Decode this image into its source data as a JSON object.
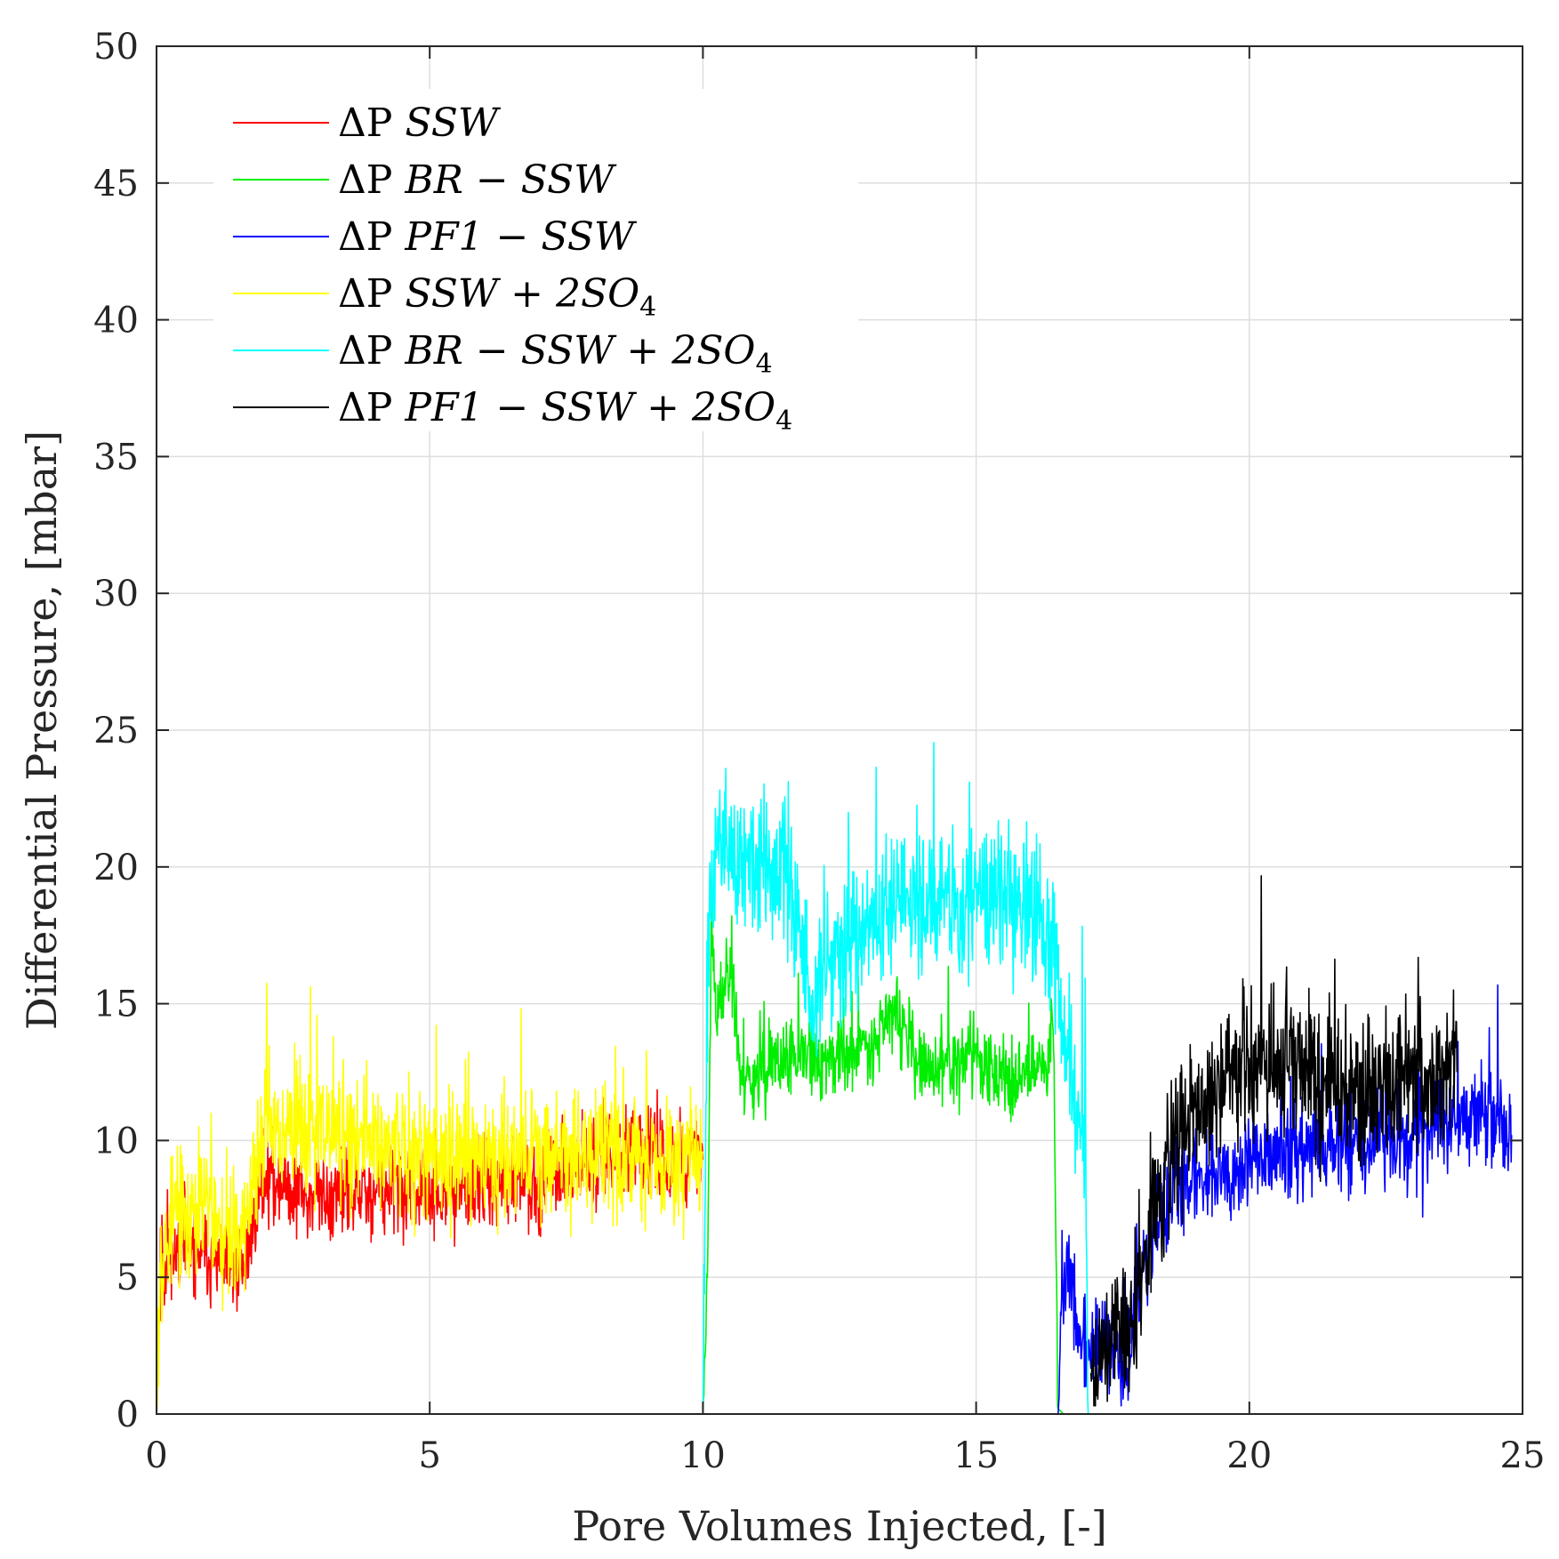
{
  "chart_data": {
    "type": "line",
    "title": "",
    "xlabel": "Pore Volumes Injected, [-]",
    "ylabel": "Differential Pressure, [mbar]",
    "xlim": [
      0,
      25
    ],
    "ylim": [
      0,
      50
    ],
    "xticks": [
      0,
      5,
      10,
      15,
      20,
      25
    ],
    "yticks": [
      0,
      5,
      10,
      15,
      20,
      25,
      30,
      35,
      40,
      45,
      50
    ],
    "grid": true,
    "legend_position": "top-left",
    "series": [
      {
        "name": "ΔP SSW",
        "legend_plain": "ΔP ",
        "legend_italic": "SSW",
        "legend_sub": "",
        "color": "#ff0000",
        "x_range": [
          0.0,
          10.0
        ],
        "trend": [
          [
            0.0,
            0.0
          ],
          [
            0.08,
            5.8
          ],
          [
            0.5,
            6.0
          ],
          [
            1.0,
            5.6
          ],
          [
            1.6,
            5.0
          ],
          [
            1.75,
            7.0
          ],
          [
            1.95,
            8.6
          ],
          [
            3.0,
            7.9
          ],
          [
            5.0,
            8.1
          ],
          [
            7.0,
            8.6
          ],
          [
            8.5,
            9.6
          ],
          [
            10.0,
            9.3
          ]
        ],
        "noise": 1.0,
        "seed": 11
      },
      {
        "name": "ΔP BR − SSW",
        "legend_plain": "ΔP ",
        "legend_italic": "BR − SSW",
        "legend_sub": "",
        "color": "#00ee00",
        "x_range": [
          10.0,
          16.6
        ],
        "trend": [
          [
            10.0,
            0.0
          ],
          [
            10.08,
            5.0
          ],
          [
            10.15,
            17.5
          ],
          [
            10.25,
            14.5
          ],
          [
            10.5,
            16.8
          ],
          [
            10.7,
            12.2
          ],
          [
            11.5,
            12.8
          ],
          [
            12.3,
            13.0
          ],
          [
            13.0,
            13.5
          ],
          [
            13.5,
            14.8
          ],
          [
            14.0,
            12.5
          ],
          [
            15.0,
            13.0
          ],
          [
            15.5,
            12.2
          ],
          [
            16.3,
            12.8
          ],
          [
            16.4,
            15.0
          ],
          [
            16.5,
            0.2
          ],
          [
            16.6,
            0.0
          ]
        ],
        "noise": 0.9,
        "seed": 23
      },
      {
        "name": "ΔP PF1 − SSW",
        "legend_plain": "ΔP ",
        "legend_italic": "PF1 − SSW",
        "legend_sub": "",
        "color": "#0000ff",
        "x_range": [
          16.5,
          24.8
        ],
        "trend": [
          [
            16.5,
            0.0
          ],
          [
            16.55,
            3.6
          ],
          [
            16.7,
            5.5
          ],
          [
            16.9,
            2.5
          ],
          [
            17.2,
            2.4
          ],
          [
            17.8,
            2.2
          ],
          [
            18.2,
            6.5
          ],
          [
            18.8,
            8.5
          ],
          [
            19.5,
            9.0
          ],
          [
            20.5,
            9.5
          ],
          [
            21.5,
            10.0
          ],
          [
            22.5,
            10.0
          ],
          [
            23.5,
            10.5
          ],
          [
            24.3,
            11.0
          ],
          [
            24.8,
            10.2
          ]
        ],
        "noise": 1.1,
        "seed": 37
      },
      {
        "name": "ΔP SSW + 2SO4",
        "legend_plain": "ΔP ",
        "legend_italic": "SSW + 2SO",
        "legend_sub": "4",
        "color": "#ffff00",
        "x_range": [
          0.0,
          10.0
        ],
        "trend": [
          [
            0.0,
            0.0
          ],
          [
            0.06,
            5.0
          ],
          [
            0.3,
            7.2
          ],
          [
            0.8,
            7.5
          ],
          [
            1.5,
            6.5
          ],
          [
            1.7,
            7.5
          ],
          [
            2.0,
            10.5
          ],
          [
            3.0,
            10.3
          ],
          [
            5.0,
            9.6
          ],
          [
            7.0,
            9.6
          ],
          [
            8.5,
            9.4
          ],
          [
            10.0,
            9.6
          ]
        ],
        "noise": 1.5,
        "seed": 53
      },
      {
        "name": "ΔP BR − SSW + 2SO4",
        "legend_plain": "ΔP ",
        "legend_italic": "BR − SSW + 2SO",
        "legend_sub": "4",
        "color": "#00ffff",
        "x_range": [
          10.0,
          17.05
        ],
        "trend": [
          [
            10.0,
            0.0
          ],
          [
            10.1,
            18.0
          ],
          [
            10.2,
            20.5
          ],
          [
            10.5,
            20.5
          ],
          [
            11.0,
            20.0
          ],
          [
            11.5,
            20.0
          ],
          [
            11.8,
            17.5
          ],
          [
            12.0,
            14.5
          ],
          [
            12.5,
            17.0
          ],
          [
            13.0,
            18.5
          ],
          [
            14.0,
            18.5
          ],
          [
            15.0,
            18.5
          ],
          [
            15.5,
            19.0
          ],
          [
            16.0,
            18.5
          ],
          [
            16.4,
            17.5
          ],
          [
            16.6,
            14.0
          ],
          [
            17.0,
            10.0
          ],
          [
            17.05,
            0.0
          ]
        ],
        "noise": 1.6,
        "seed": 71
      },
      {
        "name": "ΔP PF1 − SSW + 2SO4",
        "legend_plain": "ΔP ",
        "legend_italic": "PF1 − SSW + 2SO",
        "legend_sub": "4",
        "color": "#000000",
        "x_range": [
          17.1,
          23.8
        ],
        "trend": [
          [
            17.1,
            1.5
          ],
          [
            17.5,
            2.8
          ],
          [
            17.9,
            3.2
          ],
          [
            18.2,
            7.0
          ],
          [
            18.6,
            9.5
          ],
          [
            19.0,
            11.0
          ],
          [
            19.5,
            12.0
          ],
          [
            20.0,
            13.2
          ],
          [
            21.0,
            12.5
          ],
          [
            22.0,
            11.5
          ],
          [
            23.0,
            12.5
          ],
          [
            23.8,
            12.5
          ]
        ],
        "noise": 1.7,
        "seed": 89
      }
    ]
  }
}
